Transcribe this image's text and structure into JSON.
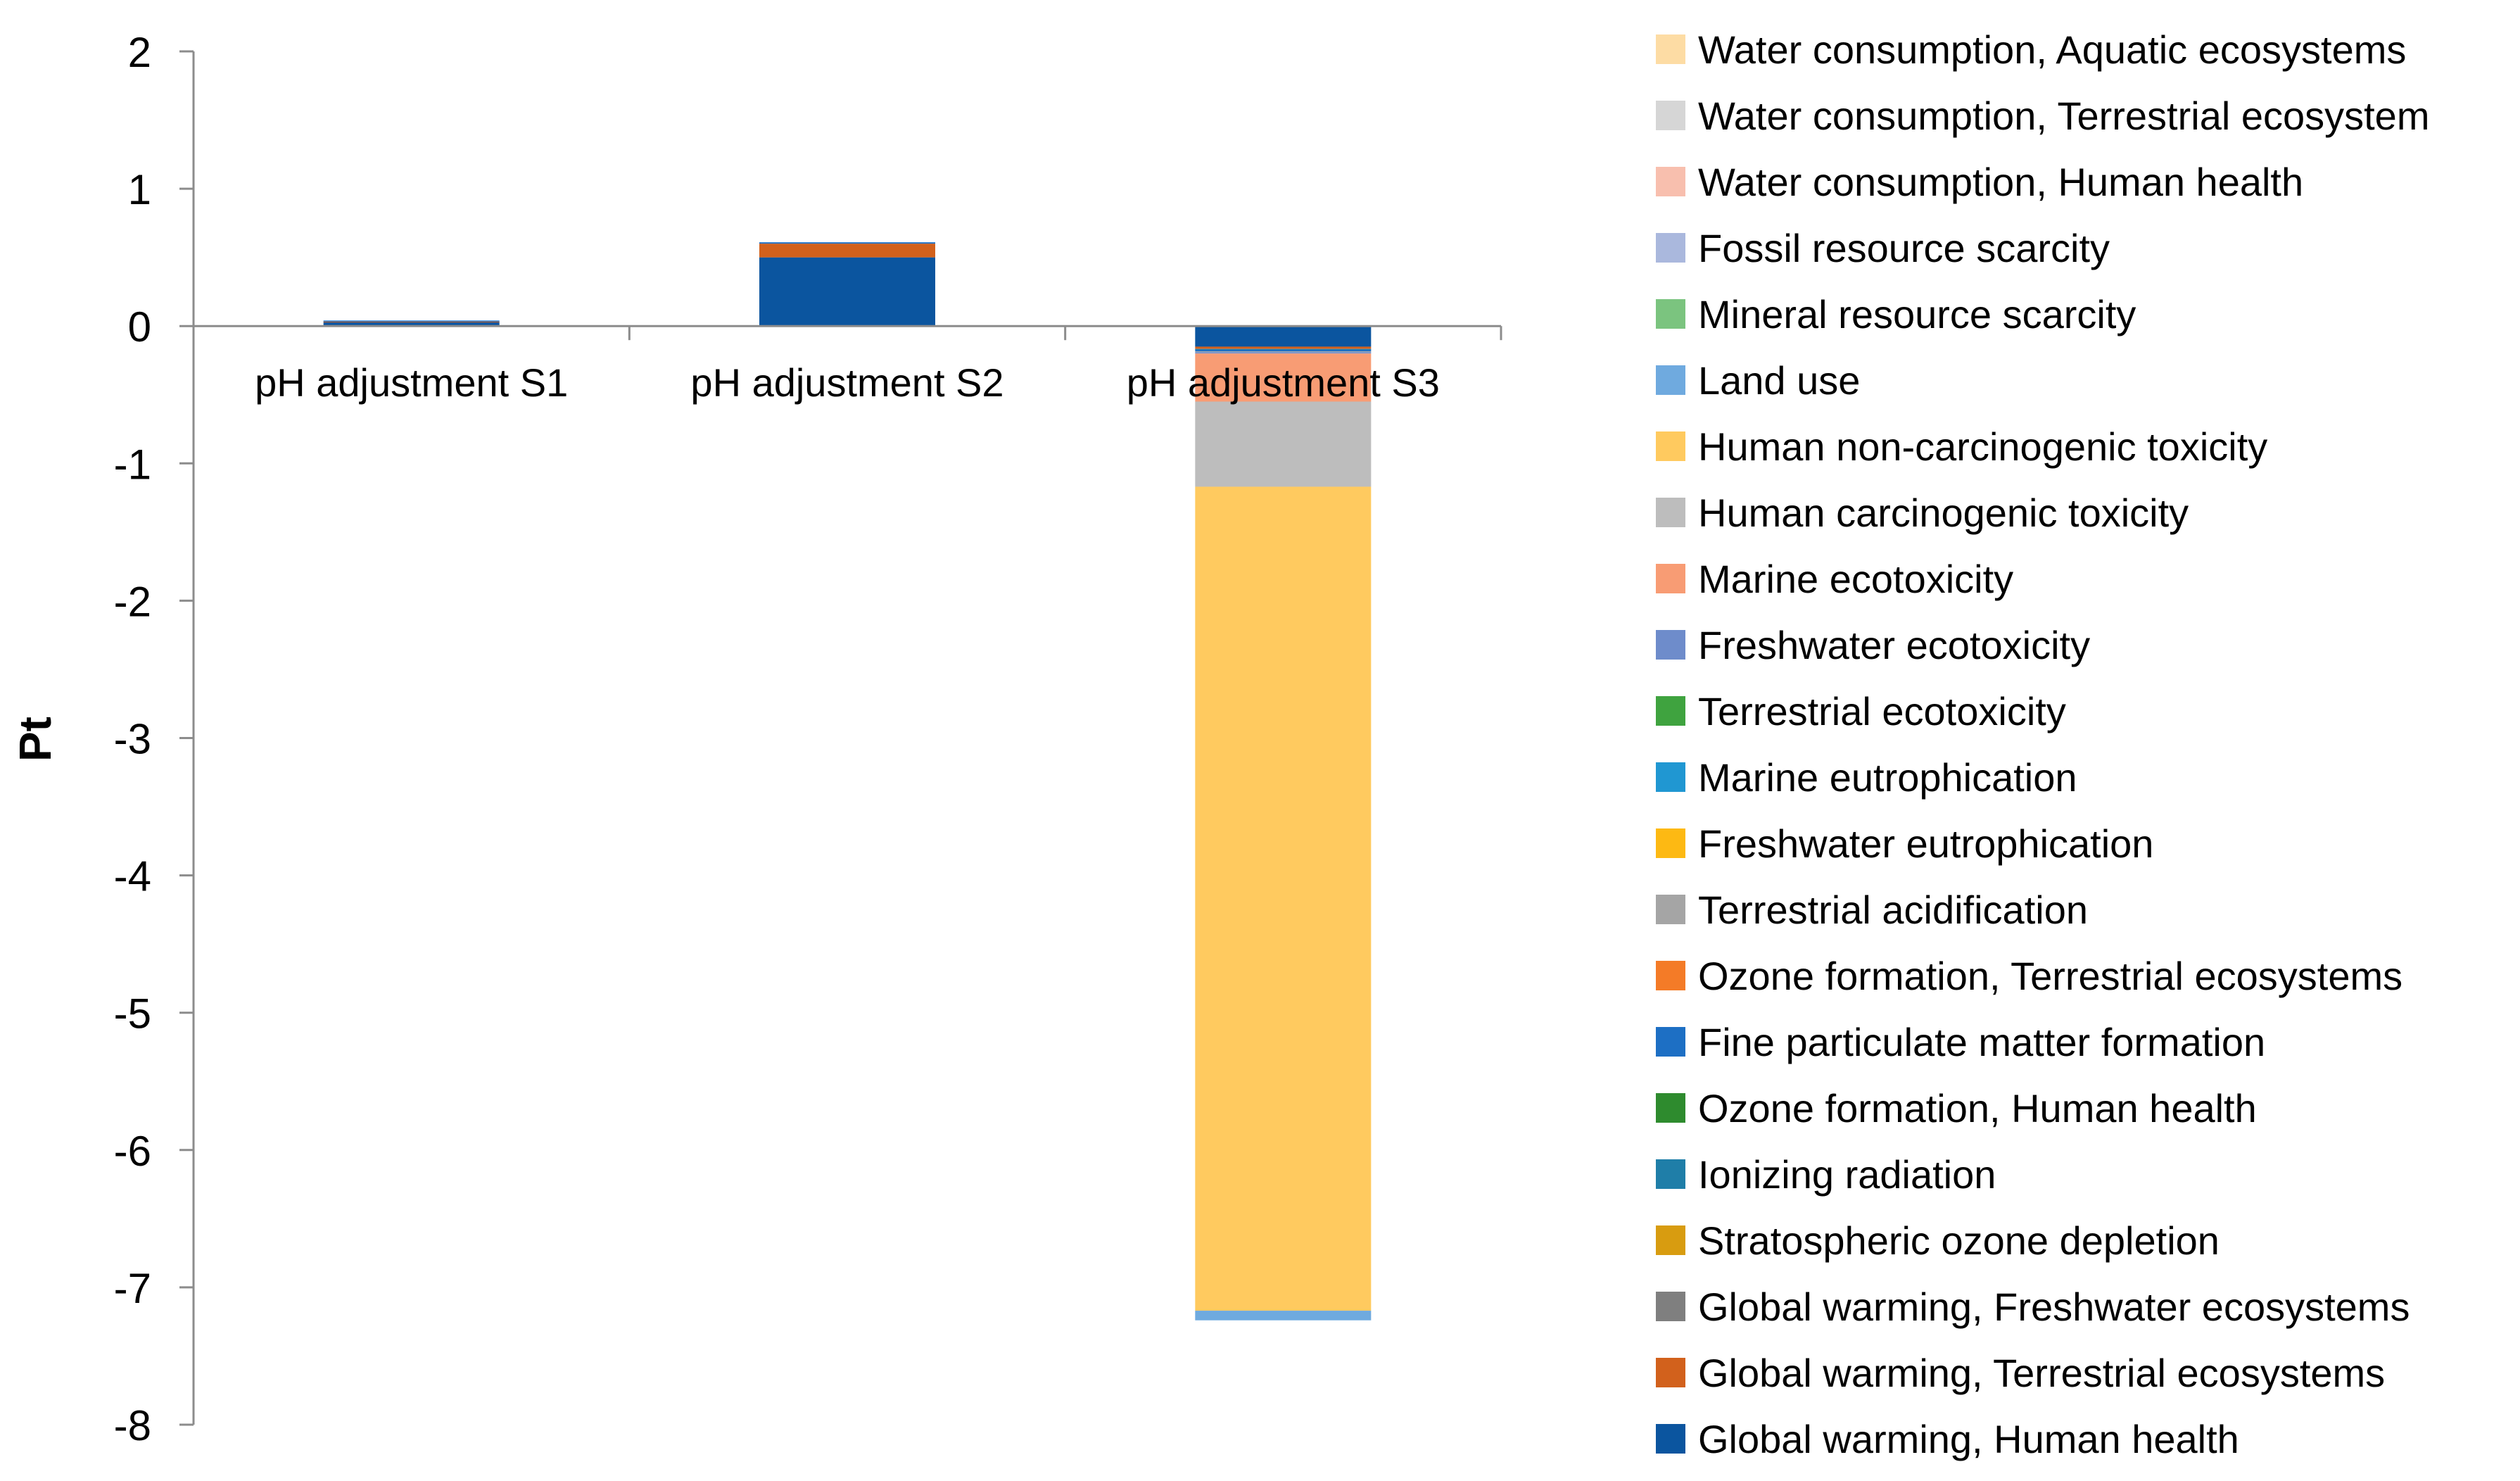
{
  "chart_data": {
    "type": "stacked-bar",
    "title": "",
    "xlabel": "",
    "ylabel": "Pt",
    "ylim": [
      -8,
      2
    ],
    "y_ticks": [
      "2",
      "1",
      "0",
      "-1",
      "-2",
      "-3",
      "-4",
      "-5",
      "-6",
      "-7",
      "-8"
    ],
    "grid": false,
    "legend_position": "right",
    "categories": [
      "pH adjustment  S1",
      "pH adjustment  S2",
      "pH adjustment S3"
    ],
    "series": [
      {
        "name": "Global warming, Human health",
        "color": "#0B559F",
        "values": [
          0.03,
          0.5,
          -0.15
        ]
      },
      {
        "name": "Global warming, Terrestrial ecosystems",
        "color": "#D2611C",
        "values": [
          0.002,
          0.1,
          -0.015
        ]
      },
      {
        "name": "Global warming, Freshwater ecosystems",
        "color": "#7F7F7F",
        "values": [
          0,
          0,
          -0.003
        ]
      },
      {
        "name": "Stratospheric ozone depletion",
        "color": "#D89C10",
        "values": [
          0,
          0,
          0
        ]
      },
      {
        "name": "Ionizing radiation",
        "color": "#1F7EA8",
        "values": [
          0,
          0,
          -0.005
        ]
      },
      {
        "name": "Ozone formation, Human health",
        "color": "#2E8B2E",
        "values": [
          0,
          0,
          0
        ]
      },
      {
        "name": "Fine particulate matter formation",
        "color": "#1D6FC4",
        "values": [
          0.008,
          0.01,
          -0.012
        ]
      },
      {
        "name": "Ozone formation, Terrestrial ecosystems",
        "color": "#F47B27",
        "values": [
          0,
          0,
          0
        ]
      },
      {
        "name": "Terrestrial acidification",
        "color": "#A5A5A5",
        "values": [
          0,
          0,
          -0.005
        ]
      },
      {
        "name": "Freshwater eutrophication",
        "color": "#FDB913",
        "values": [
          0,
          0,
          0
        ]
      },
      {
        "name": "Marine eutrophication",
        "color": "#2097D2",
        "values": [
          0,
          0,
          0
        ]
      },
      {
        "name": "Terrestrial ecotoxicity",
        "color": "#3FA33F",
        "values": [
          0,
          0,
          0
        ]
      },
      {
        "name": "Freshwater ecotoxicity",
        "color": "#6E8CCB",
        "values": [
          0,
          0,
          -0.01
        ]
      },
      {
        "name": "Marine ecotoxicity",
        "color": "#F89C74",
        "values": [
          0,
          0,
          -0.35
        ]
      },
      {
        "name": "Human carcinogenic toxicity",
        "color": "#BDBDBD",
        "values": [
          0,
          0,
          -0.62
        ]
      },
      {
        "name": "Human non-carcinogenic toxicity",
        "color": "#FFCA5F",
        "values": [
          0,
          0,
          -6.0
        ]
      },
      {
        "name": "Land use",
        "color": "#6FAADF",
        "values": [
          0,
          0,
          -0.07
        ]
      },
      {
        "name": "Mineral resource scarcity",
        "color": "#7BC47F",
        "values": [
          0,
          0,
          0
        ]
      },
      {
        "name": "Fossil resource scarcity",
        "color": "#AAB8DD",
        "values": [
          0,
          0,
          0
        ]
      },
      {
        "name": "Water consumption, Human health",
        "color": "#F8BFAE",
        "values": [
          0,
          0,
          0
        ]
      },
      {
        "name": "Water consumption, Terrestrial ecosystem",
        "color": "#D6D6D6",
        "values": [
          0,
          0,
          0
        ]
      },
      {
        "name": "Water consumption, Aquatic ecosystems",
        "color": "#FDDCA4",
        "values": [
          0,
          0,
          0
        ]
      }
    ]
  }
}
